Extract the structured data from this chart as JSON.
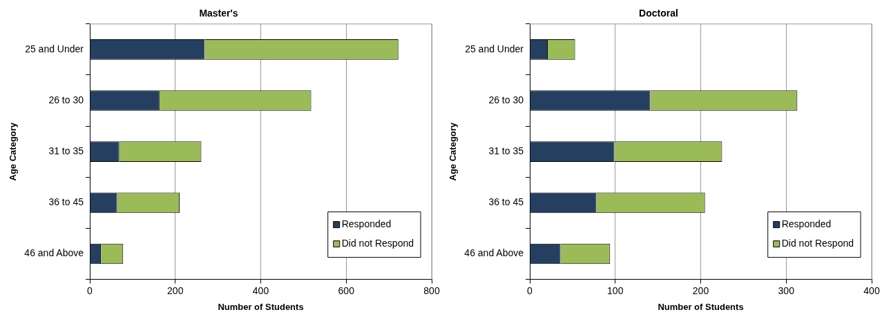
{
  "chart_data": [
    {
      "type": "bar",
      "title": "Master's",
      "xlabel": "Number of Students",
      "ylabel": "Age Category",
      "orientation": "horizontal",
      "stacked": true,
      "categories": [
        "25 and Under",
        "26 to 30",
        "31 to 35",
        "36 to 45",
        "46 and Above"
      ],
      "series": [
        {
          "name": "Responded",
          "color": "#243f60",
          "values": [
            269,
            163,
            69,
            64,
            26
          ]
        },
        {
          "name": "Did not Respond",
          "color": "#9bbb59",
          "values": [
            453,
            355,
            192,
            146,
            52
          ]
        }
      ],
      "xlim": [
        0,
        800
      ],
      "xticks": [
        0,
        200,
        400,
        600,
        800
      ],
      "grid": "x",
      "legend": "bottom right"
    },
    {
      "type": "bar",
      "title": "Doctoral",
      "xlabel": "Number of Students",
      "ylabel": "Age Category",
      "orientation": "horizontal",
      "stacked": true,
      "categories": [
        "25 and Under",
        "26 to 30",
        "31 to 35",
        "36 to 45",
        "46 and Above"
      ],
      "series": [
        {
          "name": "Responded",
          "color": "#243f60",
          "values": [
            21,
            141,
            99,
            78,
            36
          ]
        },
        {
          "name": "Did not Respond",
          "color": "#9bbb59",
          "values": [
            32,
            172,
            126,
            127,
            58
          ]
        }
      ],
      "xlim": [
        0,
        400
      ],
      "xticks": [
        0,
        100,
        200,
        300,
        400
      ],
      "grid": "x",
      "legend": "bottom right"
    }
  ]
}
